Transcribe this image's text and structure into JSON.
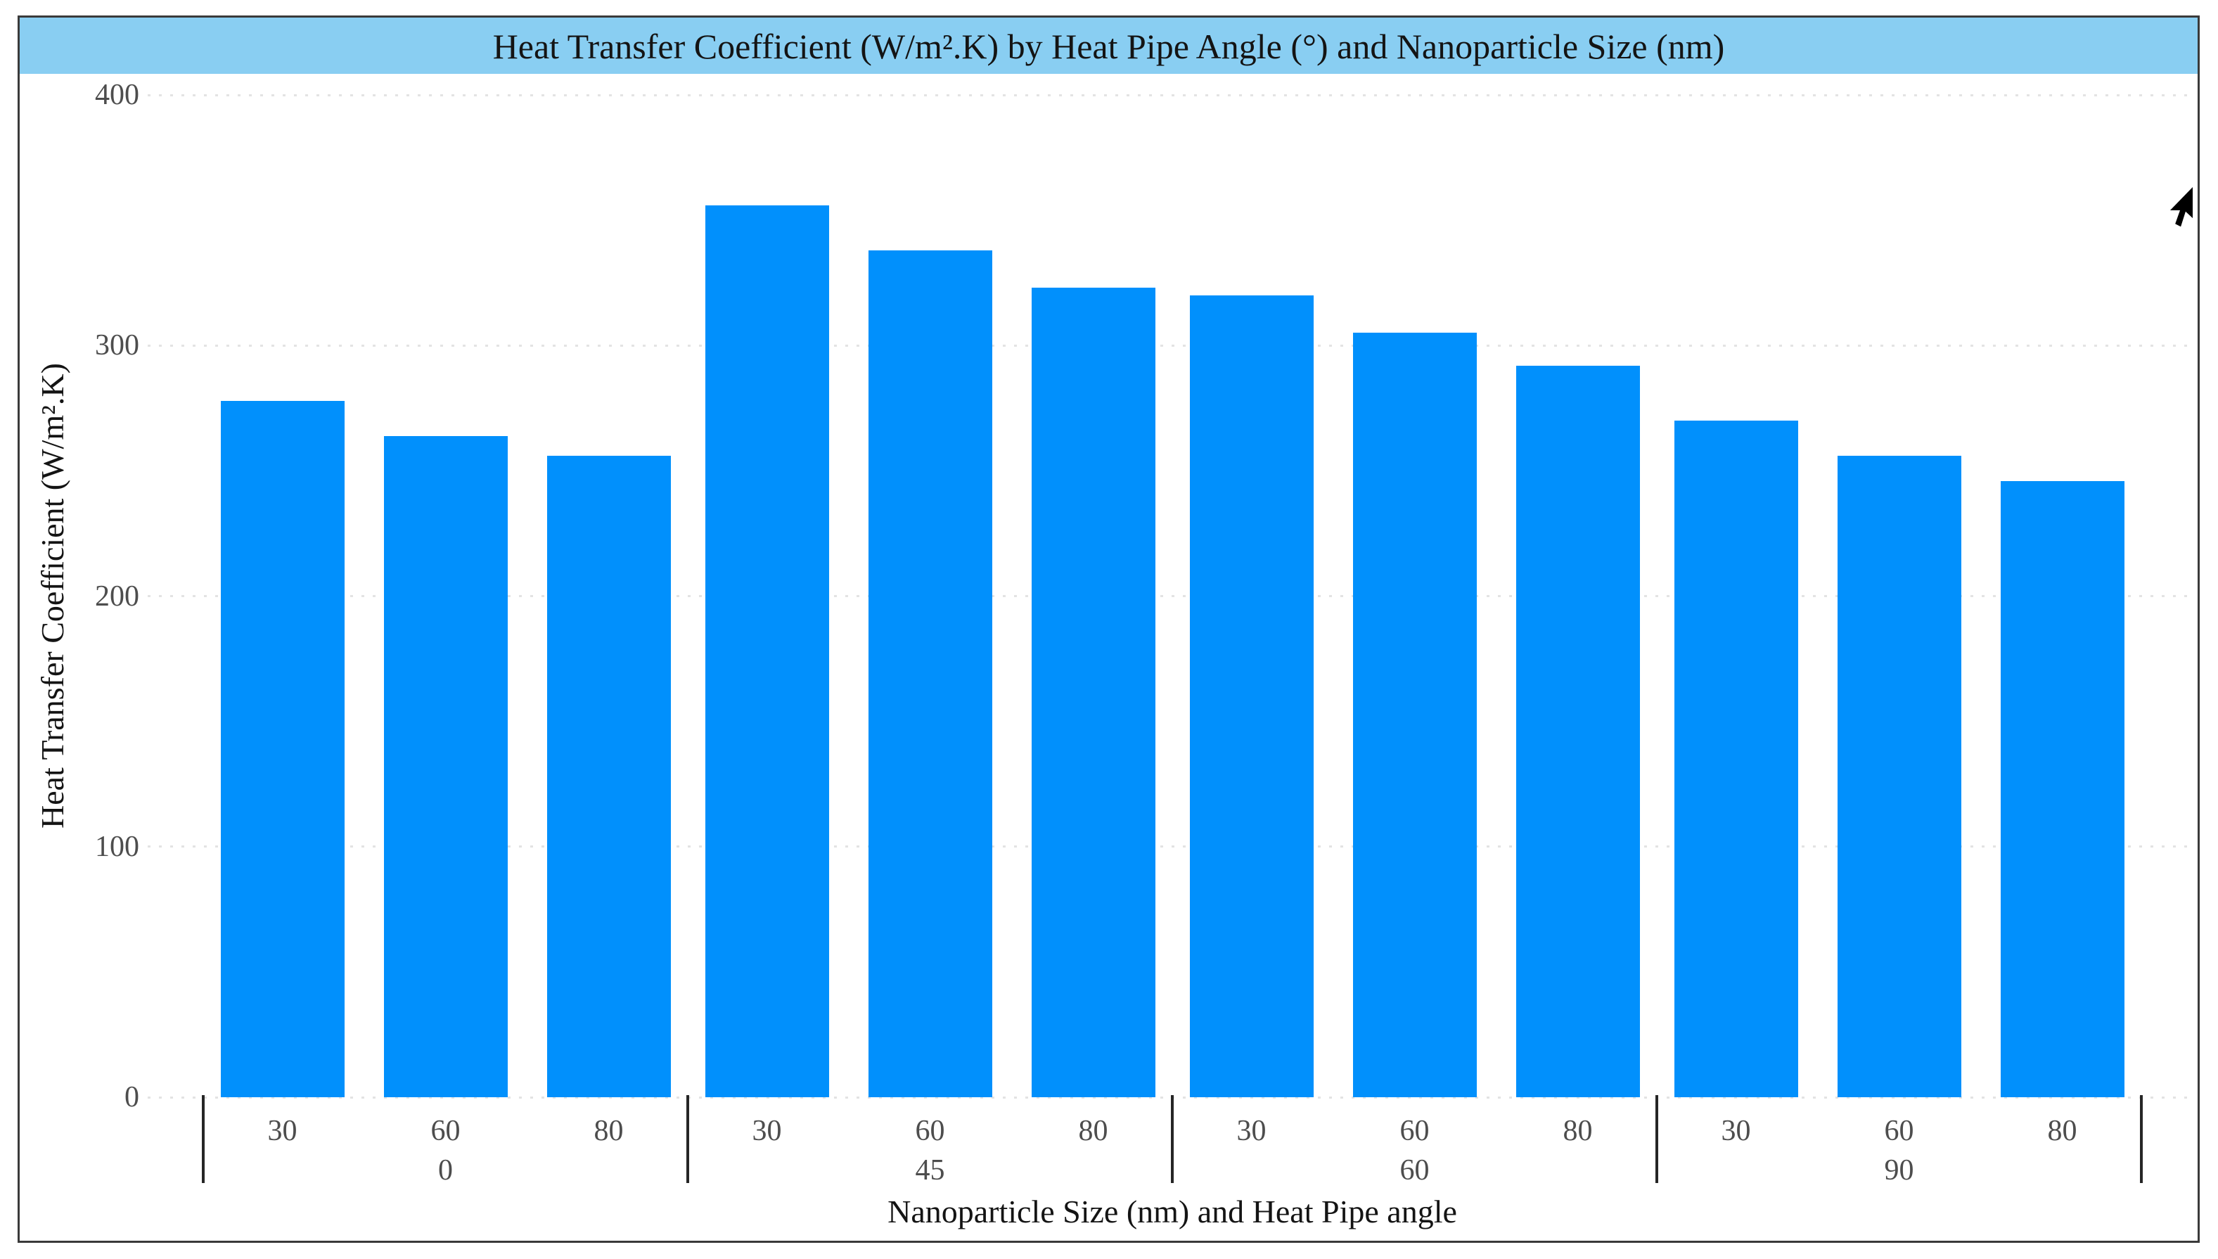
{
  "chart_data": {
    "type": "bar",
    "title": "Heat Transfer Coefficient (W/m².K) by Heat Pipe Angle (°) and Nanoparticle Size (nm)",
    "xlabel": "Nanoparticle Size (nm) and Heat Pipe angle",
    "ylabel": "Heat Transfer Coefficient (W/m².K)",
    "ylim": [
      0,
      400
    ],
    "yticks": [
      0,
      100,
      200,
      300,
      400
    ],
    "grid": "horizontal dotted",
    "legend": "none",
    "bar_color": "#0190FC",
    "title_band_color": "#89CEF2",
    "groups": [
      {
        "label": "0",
        "categories": [
          "30",
          "60",
          "80"
        ],
        "values": [
          278,
          264,
          256
        ]
      },
      {
        "label": "45",
        "categories": [
          "30",
          "60",
          "80"
        ],
        "values": [
          356,
          338,
          323
        ]
      },
      {
        "label": "60",
        "categories": [
          "30",
          "60",
          "80"
        ],
        "values": [
          320,
          305,
          292
        ]
      },
      {
        "label": "90",
        "categories": [
          "30",
          "60",
          "80"
        ],
        "values": [
          270,
          256,
          246
        ]
      }
    ]
  }
}
